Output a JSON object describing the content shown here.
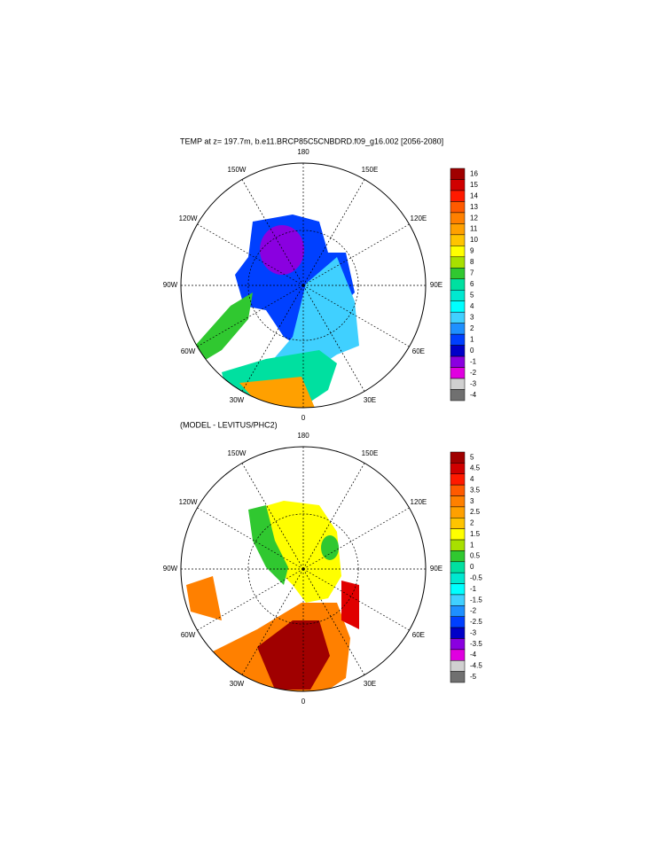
{
  "panels": [
    {
      "title": "TEMP at z= 197.7m, b.e11.BRCP85C5CNBDRD.f09_g16.002 [2056-2080]",
      "lon_labels": [
        "180",
        "150E",
        "120E",
        "90E",
        "60E",
        "30E",
        "0",
        "30W",
        "60W",
        "90W",
        "120W",
        "150W"
      ],
      "colorbar": {
        "labels": [
          16,
          15,
          14,
          13,
          12,
          11,
          10,
          9,
          8,
          7,
          6,
          5,
          4,
          3,
          2,
          1,
          0,
          -1,
          -2,
          -3,
          -4
        ],
        "colors": [
          "#a00000",
          "#d00000",
          "#ff1a00",
          "#ff5a00",
          "#ff8000",
          "#ffa000",
          "#ffc400",
          "#ffff00",
          "#a8e000",
          "#30c830",
          "#00e0a0",
          "#00e8d0",
          "#00ffff",
          "#40d0ff",
          "#1e90ff",
          "#0040ff",
          "#0000c8",
          "#8a00e0",
          "#e000e0",
          "#d0d0d0",
          "#707070"
        ]
      }
    },
    {
      "title": "(MODEL - LEVITUS/PHC2)",
      "lon_labels": [
        "180",
        "150E",
        "120E",
        "90E",
        "60E",
        "30E",
        "0",
        "30W",
        "60W",
        "90W",
        "120W",
        "150W"
      ],
      "colorbar": {
        "labels": [
          5,
          4.5,
          4,
          3.5,
          3,
          2.5,
          2,
          1.5,
          1,
          0.5,
          0,
          -0.5,
          -1,
          -1.5,
          -2,
          -2.5,
          -3,
          -3.5,
          -4,
          -4.5,
          -5
        ],
        "colors": [
          "#a00000",
          "#d00000",
          "#ff1a00",
          "#ff5a00",
          "#ff8000",
          "#ffa000",
          "#ffc400",
          "#ffff00",
          "#a8e000",
          "#30c830",
          "#00e0a0",
          "#00e8d0",
          "#00ffff",
          "#40d0ff",
          "#1e90ff",
          "#0040ff",
          "#0000c8",
          "#8a00e0",
          "#e000e0",
          "#d0d0d0",
          "#707070"
        ]
      }
    }
  ]
}
